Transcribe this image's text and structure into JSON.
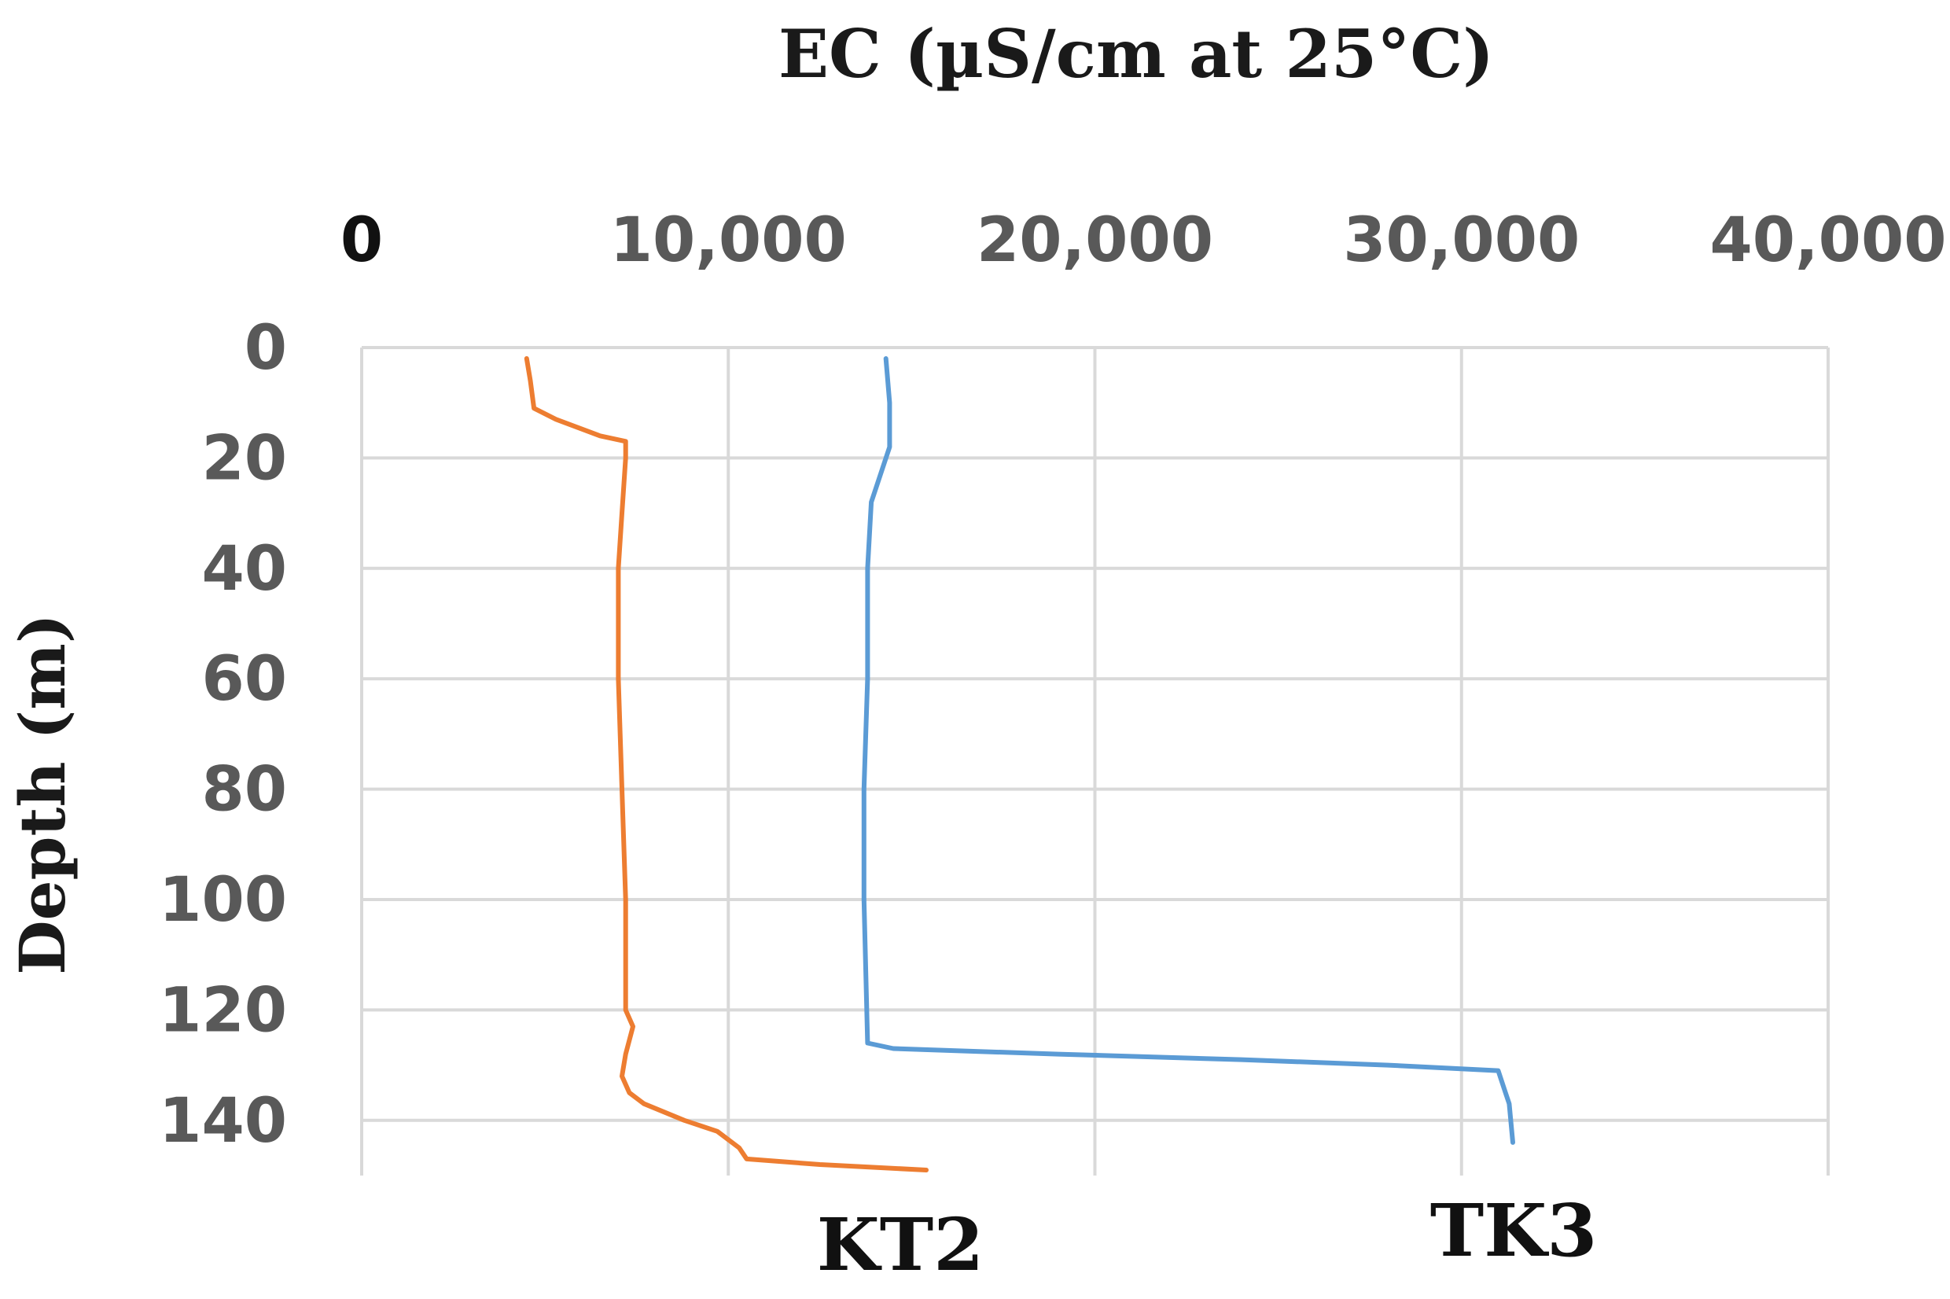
{
  "chart_data": {
    "type": "line",
    "title": "EC (µS/cm at 25°C)",
    "xlabel": "EC (µS/cm at 25°C)",
    "ylabel": "Depth (m)",
    "xlim": [
      0,
      40000
    ],
    "ylim": [
      0,
      150
    ],
    "y_inverted": true,
    "x_axis_position": "top",
    "grid": true,
    "x_ticks": [
      "0",
      "10,000",
      "20,000",
      "30,000",
      "40,000"
    ],
    "y_ticks": [
      "0",
      "20",
      "40",
      "60",
      "80",
      "100",
      "120",
      "140"
    ],
    "x_tick_values": [
      0,
      10000,
      20000,
      30000,
      40000
    ],
    "y_tick_values": [
      0,
      20,
      40,
      60,
      80,
      100,
      120,
      140
    ],
    "series": [
      {
        "name": "KT2",
        "color": "#ed7d31",
        "points": [
          [
            4500,
            2
          ],
          [
            4600,
            6
          ],
          [
            4700,
            11
          ],
          [
            5300,
            13
          ],
          [
            6500,
            16
          ],
          [
            7200,
            17
          ],
          [
            7200,
            20
          ],
          [
            7100,
            30
          ],
          [
            7000,
            40
          ],
          [
            7000,
            60
          ],
          [
            7100,
            80
          ],
          [
            7200,
            100
          ],
          [
            7200,
            120
          ],
          [
            7400,
            123
          ],
          [
            7200,
            128
          ],
          [
            7100,
            132
          ],
          [
            7300,
            135
          ],
          [
            7700,
            137
          ],
          [
            8800,
            140
          ],
          [
            9700,
            142
          ],
          [
            10300,
            145
          ],
          [
            10500,
            147
          ],
          [
            12500,
            148
          ],
          [
            15400,
            149
          ]
        ]
      },
      {
        "name": "TK3",
        "color": "#5b9bd5",
        "points": [
          [
            14300,
            2
          ],
          [
            14400,
            10
          ],
          [
            14400,
            18
          ],
          [
            14200,
            22
          ],
          [
            13900,
            28
          ],
          [
            13800,
            40
          ],
          [
            13800,
            60
          ],
          [
            13700,
            80
          ],
          [
            13700,
            100
          ],
          [
            13800,
            126
          ],
          [
            14500,
            127
          ],
          [
            19000,
            128
          ],
          [
            24000,
            129
          ],
          [
            28000,
            130
          ],
          [
            31000,
            131
          ],
          [
            31200,
            135
          ],
          [
            31300,
            137
          ],
          [
            31400,
            144
          ]
        ]
      }
    ]
  }
}
